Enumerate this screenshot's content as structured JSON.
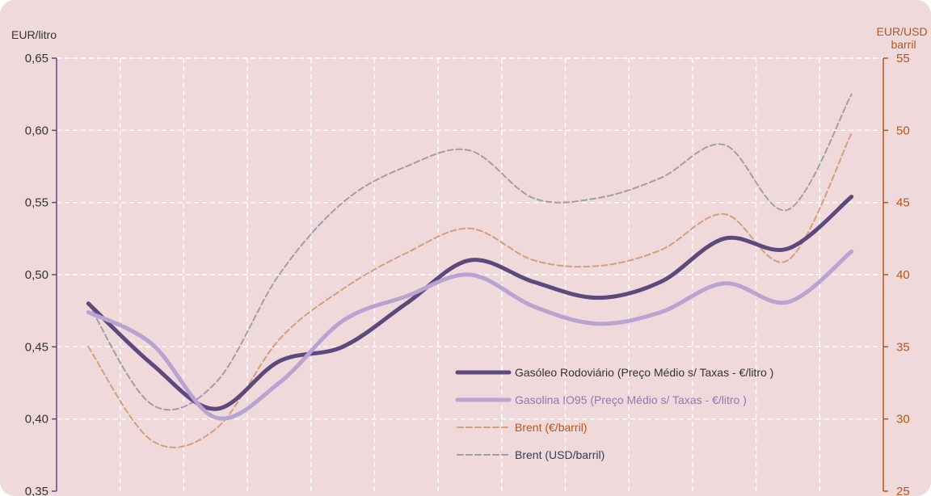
{
  "chart_data": {
    "type": "line",
    "title": "",
    "xlabel": "",
    "y_left": {
      "unit_label": "EUR/litro",
      "range": [
        0.35,
        0.65
      ],
      "ticks": [
        "0,35",
        "0,40",
        "0,45",
        "0,50",
        "0,55",
        "0,60",
        "0,65"
      ],
      "tick_values": [
        0.35,
        0.4,
        0.45,
        0.5,
        0.55,
        0.6,
        0.65
      ],
      "color": "#5d4a7c"
    },
    "y_right": {
      "unit_label_lines": [
        "EUR/USD",
        "barril"
      ],
      "range": [
        25,
        55
      ],
      "ticks": [
        "25",
        "30",
        "35",
        "40",
        "45",
        "50",
        "55"
      ],
      "tick_values": [
        25,
        30,
        35,
        40,
        45,
        50,
        55
      ],
      "color": "#b4561e"
    },
    "x_range": [
      0,
      13
    ],
    "grid": true,
    "legend_position": "lower-right",
    "series": [
      {
        "name": "Gasóleo Rodoviário (Preço Médio s/ Taxas - €/litro )",
        "axis": "left",
        "color": "#5d4a7c",
        "style": "solid-thick",
        "x": [
          0.5,
          1.5,
          2.5,
          3.5,
          4.5,
          5.5,
          6.5,
          7.5,
          8.5,
          9.5,
          10.5,
          11.5,
          12.5
        ],
        "values": [
          0.48,
          0.438,
          0.407,
          0.44,
          0.45,
          0.48,
          0.51,
          0.495,
          0.484,
          0.495,
          0.525,
          0.518,
          0.554
        ]
      },
      {
        "name": "Gasolina IO95 (Preço Médio s/ Taxas - €/litro )",
        "axis": "left",
        "color": "#b8a3d1",
        "style": "solid-thick",
        "x": [
          0.5,
          1.5,
          2.5,
          3.5,
          4.5,
          5.5,
          6.5,
          7.5,
          8.5,
          9.5,
          10.5,
          11.5,
          12.5
        ],
        "values": [
          0.474,
          0.452,
          0.401,
          0.425,
          0.468,
          0.485,
          0.5,
          0.478,
          0.466,
          0.474,
          0.494,
          0.481,
          0.516
        ]
      },
      {
        "name": "Brent (€/barril)",
        "axis": "right",
        "color": "#d3a07d",
        "style": "dashed",
        "x": [
          0.5,
          1.5,
          2.5,
          3.5,
          4.5,
          5.5,
          6.5,
          7.5,
          8.5,
          9.5,
          10.5,
          11.5,
          12.5
        ],
        "values": [
          35,
          28.5,
          29.3,
          35.5,
          39,
          41.5,
          43.2,
          41,
          40.6,
          41.7,
          44.2,
          41,
          49.8
        ]
      },
      {
        "name": "Brent (USD/barril)",
        "axis": "right",
        "color": "#a19daa",
        "style": "dashed",
        "x": [
          0.5,
          1.5,
          2.5,
          3.5,
          4.5,
          5.5,
          6.5,
          7.5,
          8.5,
          9.5,
          10.5,
          11.5,
          12.5
        ],
        "values": [
          38,
          31,
          32.5,
          40,
          45,
          47.5,
          48.6,
          45.3,
          45.3,
          46.7,
          49,
          44.5,
          52.5
        ]
      }
    ]
  },
  "legend": {
    "items": [
      {
        "label": "Gasóleo Rodoviário (Preço Médio s/ Taxas - €/litro )",
        "text_color": "#333333",
        "line_color": "#5d4a7c",
        "style": "solid-thick"
      },
      {
        "label": "Gasolina IO95 (Preço Médio s/ Taxas - €/litro )",
        "text_color": "#8e79b4",
        "line_color": "#b8a3d1",
        "style": "solid-thick"
      },
      {
        "label": "Brent (€/barril)",
        "text_color": "#b4561e",
        "line_color": "#d3a07d",
        "style": "dashed"
      },
      {
        "label": "Brent (USD/barril)",
        "text_color": "#333d58",
        "line_color": "#a19daa",
        "style": "dashed"
      }
    ]
  },
  "colors": {
    "plot_background": "#efd9da",
    "gridline": "#ffffff"
  }
}
